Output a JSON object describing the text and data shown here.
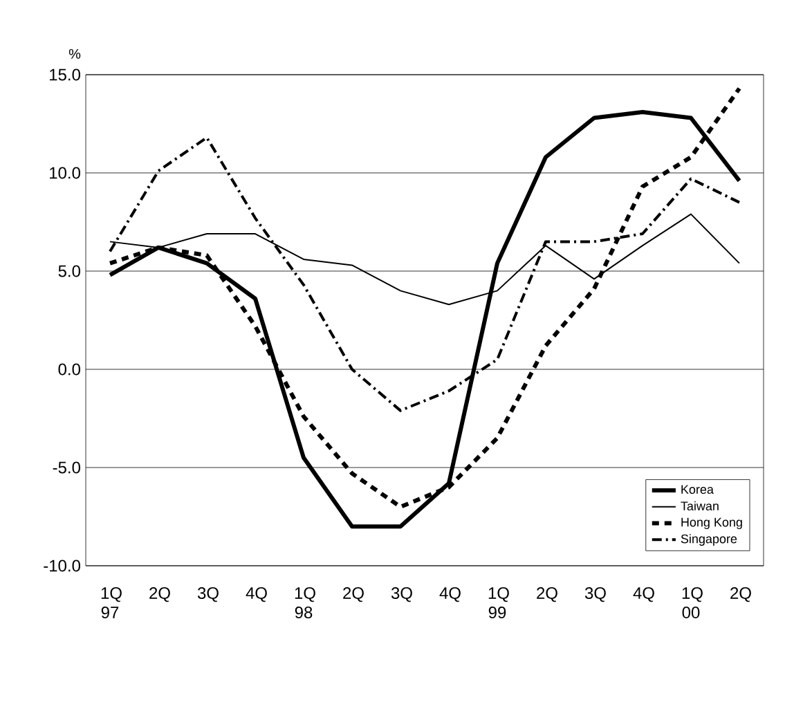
{
  "chart_data": {
    "type": "line",
    "ylabel": "%",
    "categories": [
      "1Q 97",
      "2Q",
      "3Q",
      "4Q",
      "1Q 98",
      "2Q",
      "3Q",
      "4Q",
      "1Q 99",
      "2Q",
      "3Q",
      "4Q",
      "1Q 00",
      "2Q"
    ],
    "series": [
      {
        "name": "Korea",
        "color": "#000000",
        "line_style": "solid",
        "values": [
          4.8,
          6.2,
          5.4,
          3.6,
          -4.5,
          -8.0,
          -8.0,
          -5.8,
          5.4,
          10.8,
          12.8,
          13.1,
          12.8,
          9.6
        ]
      },
      {
        "name": "Taiwan",
        "color": "#000000",
        "line_style": "solid",
        "values": [
          6.5,
          6.2,
          6.9,
          6.9,
          5.6,
          5.3,
          4.0,
          3.3,
          4.0,
          6.3,
          4.6,
          6.3,
          7.9,
          5.4
        ]
      },
      {
        "name": "Hong Kong",
        "color": "#000000",
        "line_style": "dashed",
        "values": [
          5.4,
          6.2,
          5.8,
          2.2,
          -2.4,
          -5.3,
          -7.0,
          -6.0,
          -3.5,
          1.2,
          4.1,
          9.3,
          10.8,
          14.3
        ]
      },
      {
        "name": "Singapore",
        "color": "#000000",
        "line_style": "dashdot",
        "values": [
          6.0,
          10.1,
          11.8,
          7.7,
          4.3,
          0.0,
          -2.1,
          -1.1,
          0.5,
          6.5,
          6.5,
          6.9,
          9.7,
          8.5
        ]
      }
    ],
    "ylim": [
      -10,
      15
    ],
    "yticks": [
      {
        "value": -10,
        "label": "-10.0"
      },
      {
        "value": -5,
        "label": "-5.0"
      },
      {
        "value": 0,
        "label": "0.0"
      },
      {
        "value": 5,
        "label": "5.0"
      },
      {
        "value": 10,
        "label": "10.0"
      },
      {
        "value": 15,
        "label": "15.0"
      }
    ],
    "grid": "y",
    "legend": "bottom right",
    "marker": "none"
  }
}
